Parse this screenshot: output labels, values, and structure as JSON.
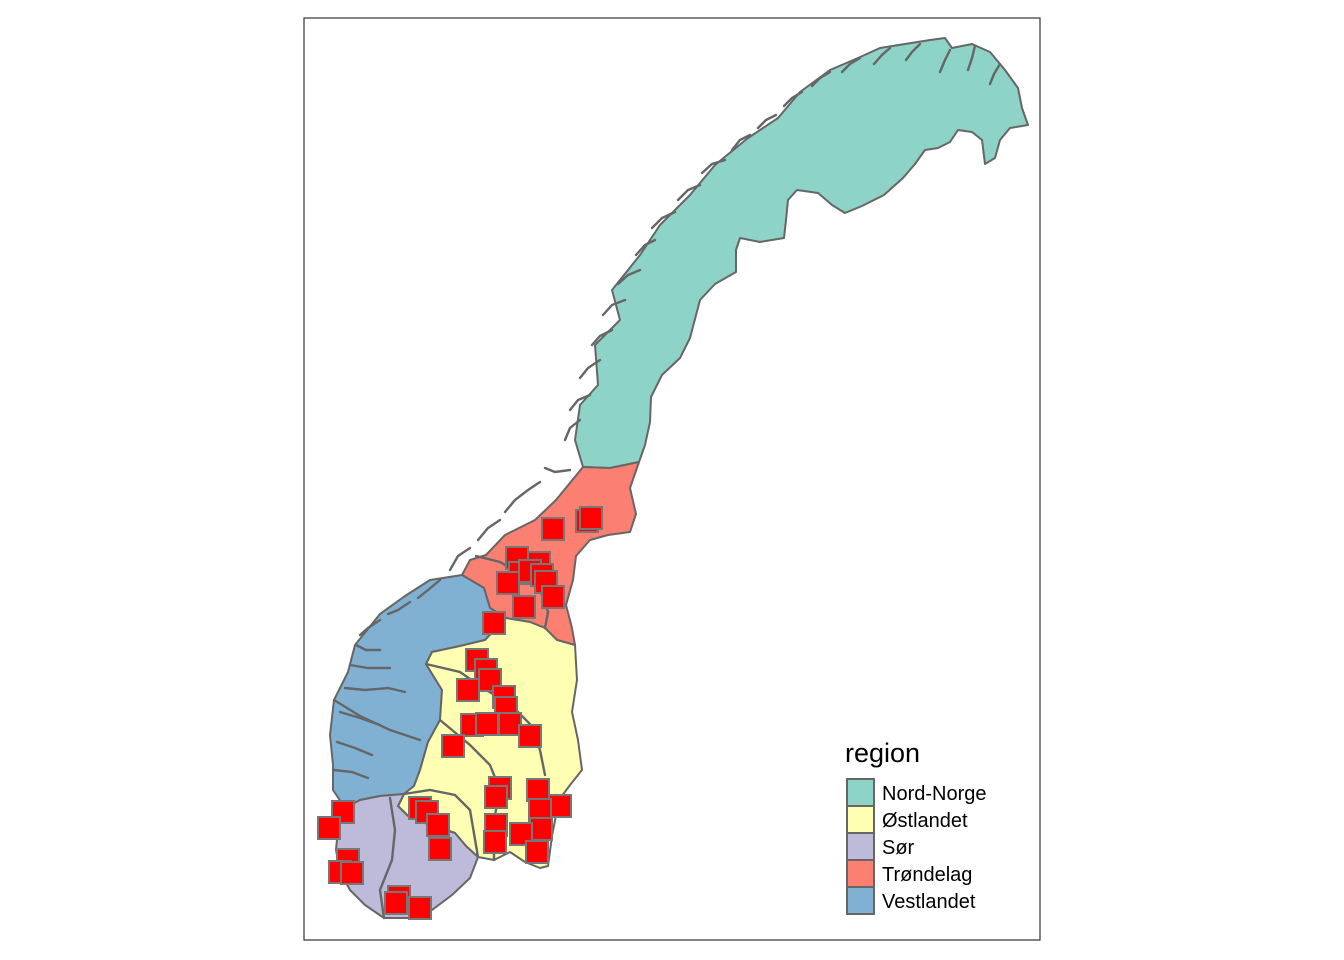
{
  "legend": {
    "title": "region",
    "entries": [
      {
        "key": "nord-norge",
        "label": "Nord-Norge",
        "color": "#8dd3c7"
      },
      {
        "key": "ostlandet",
        "label": "Østlandet",
        "color": "#ffffb3"
      },
      {
        "key": "sor",
        "label": "Sør",
        "color": "#bebada"
      },
      {
        "key": "trondelag",
        "label": "Trøndelag",
        "color": "#fb8072"
      },
      {
        "key": "vestlandet",
        "label": "Vestlandet",
        "color": "#80b1d3"
      }
    ]
  },
  "colors": {
    "marker_fill": "#ff0000",
    "border": "#666666",
    "frame": "#333333"
  }
}
